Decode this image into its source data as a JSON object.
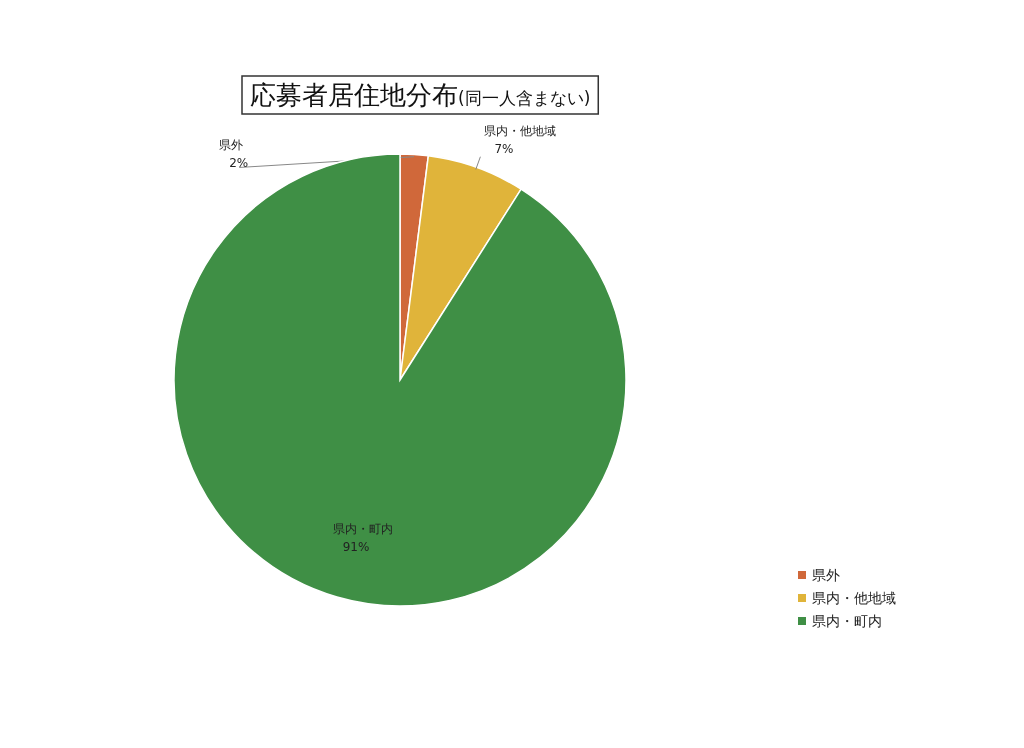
{
  "chart_data": {
    "type": "pie",
    "title": "応募者居住地分布",
    "subtitle": "(同一人含まない)",
    "categories": [
      "県外",
      "県内・他地域",
      "県内・町内"
    ],
    "values": [
      2,
      7,
      91
    ],
    "colors": [
      "#d0683a",
      "#e0b43a",
      "#3f8f45"
    ],
    "value_labels": [
      "2%",
      "7%",
      "91%"
    ],
    "legend": "bottom right"
  }
}
